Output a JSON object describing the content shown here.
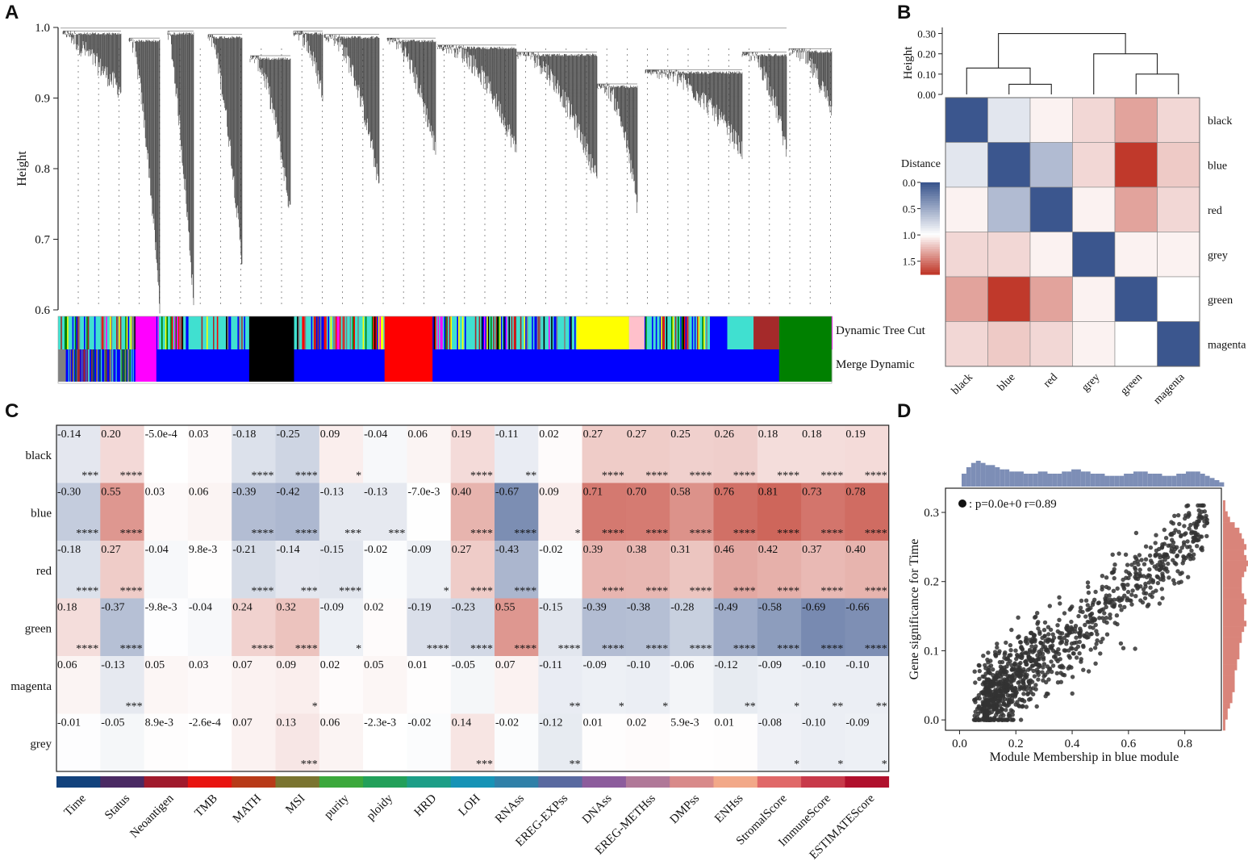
{
  "panels": {
    "A": "A",
    "B": "B",
    "C": "C",
    "D": "D"
  },
  "colors": {
    "blue_high": "#3b568e",
    "red_high": "#c0392b",
    "module_black": "#000000",
    "module_blue": "#0000ff",
    "module_red": "#ff0000",
    "module_green": "#008000",
    "module_magenta": "#ff00ff",
    "module_yellow": "#ffff00",
    "module_turquoise": "#40e0d0",
    "module_brown": "#a52a2a",
    "module_pink": "#ffc0cb",
    "scatter_point": "#333333",
    "hist_top": "#7d8eb6",
    "hist_right": "#d9847a"
  },
  "chart_data": [
    {
      "id": "A",
      "type": "dendrogram",
      "ylabel": "Height",
      "yticks": [
        "1.0",
        "0.9",
        "0.8",
        "0.7",
        "0.6"
      ],
      "ytick_values": [
        1.0,
        0.9,
        0.8,
        0.7,
        0.6
      ],
      "ylim": [
        0.6,
        1.0
      ],
      "color_rows": [
        "Dynamic Tree Cut",
        "Merge Dynamic"
      ],
      "merge_dynamic_segments": [
        {
          "module": "grey",
          "frac": 0.01
        },
        {
          "module": "blue",
          "frac": 0.09
        },
        {
          "module": "magenta",
          "frac": 0.027
        },
        {
          "module": "blue",
          "frac": 0.12
        },
        {
          "module": "black",
          "frac": 0.058
        },
        {
          "module": "blue",
          "frac": 0.117
        },
        {
          "module": "red",
          "frac": 0.062
        },
        {
          "module": "blue",
          "frac": 0.448
        },
        {
          "module": "green",
          "frac": 0.068
        }
      ],
      "dynamic_tree_cut_blocks": [
        {
          "module": "magenta",
          "start": 0.1,
          "frac": 0.027
        },
        {
          "module": "black",
          "start": 0.247,
          "frac": 0.058
        },
        {
          "module": "red",
          "start": 0.422,
          "frac": 0.062
        },
        {
          "module": "yellow",
          "start": 0.67,
          "frac": 0.068
        },
        {
          "module": "pink",
          "start": 0.738,
          "frac": 0.02
        },
        {
          "module": "blue",
          "start": 0.843,
          "frac": 0.022
        },
        {
          "module": "turquoise",
          "start": 0.865,
          "frac": 0.034
        },
        {
          "module": "brown",
          "start": 0.899,
          "frac": 0.033
        },
        {
          "module": "green",
          "start": 0.932,
          "frac": 0.068
        }
      ]
    },
    {
      "id": "B",
      "type": "heatmap",
      "modules": [
        "black",
        "blue",
        "red",
        "grey",
        "green",
        "magenta"
      ],
      "ylabel": "Height",
      "height_ticks": [
        "0.30",
        "0.20",
        "0.10",
        "0.00"
      ],
      "height_tick_values": [
        0.3,
        0.2,
        0.1,
        0.0
      ],
      "legend_title": "Distance",
      "legend_ticks": [
        "0.0",
        "0.5",
        "1.0",
        "1.5"
      ],
      "legend_tick_values": [
        0.0,
        0.5,
        1.0,
        1.5
      ],
      "distance": [
        [
          0.0,
          0.85,
          1.05,
          1.15,
          1.35,
          1.15
        ],
        [
          0.85,
          0.0,
          0.6,
          1.15,
          1.75,
          1.2
        ],
        [
          1.05,
          0.6,
          0.0,
          1.05,
          1.35,
          1.15
        ],
        [
          1.15,
          1.15,
          1.05,
          0.0,
          1.05,
          1.05
        ],
        [
          1.35,
          1.75,
          1.35,
          1.05,
          0.0,
          1.0
        ],
        [
          1.15,
          1.2,
          1.15,
          1.05,
          1.0,
          0.0
        ]
      ],
      "dendrogram_merges": [
        {
          "left": "blue",
          "right": "red",
          "height": 0.05
        },
        {
          "left": "black",
          "right": "blue+red",
          "height": 0.13
        },
        {
          "left": "green",
          "right": "magenta",
          "height": 0.1
        },
        {
          "left": "grey",
          "right": "green+magenta",
          "height": 0.2
        },
        {
          "left": "black+blue+red",
          "right": "grey+green+magenta",
          "height": 0.3
        }
      ]
    },
    {
      "id": "C",
      "type": "heatmap",
      "rows": [
        "black",
        "blue",
        "red",
        "green",
        "magenta",
        "grey"
      ],
      "cols": [
        "Time",
        "Status",
        "Neoantigen",
        "TMB",
        "MATH",
        "MSI",
        "purity",
        "ploidy",
        "HRD",
        "LOH",
        "RNAss",
        "EREG-EXPss",
        "DNAss",
        "EREG-METHss",
        "DMPss",
        "ENHss",
        "StromalScore",
        "ImmuneScore",
        "ESTIMATEScore"
      ],
      "labels": [
        [
          "-0.14",
          "0.20",
          "-5.0e-4",
          "0.03",
          "-0.18",
          "-0.25",
          "0.09",
          "-0.04",
          "0.06",
          "0.19",
          "-0.11",
          "0.02",
          "0.27",
          "0.27",
          "0.25",
          "0.26",
          "0.18",
          "0.18",
          "0.19"
        ],
        [
          "-0.30",
          "0.55",
          "0.03",
          "0.06",
          "-0.39",
          "-0.42",
          "-0.13",
          "-0.13",
          "-7.0e-3",
          "0.40",
          "-0.67",
          "0.09",
          "0.71",
          "0.70",
          "0.58",
          "0.76",
          "0.81",
          "0.73",
          "0.78"
        ],
        [
          "-0.18",
          "0.27",
          "-0.04",
          "9.8e-3",
          "-0.21",
          "-0.14",
          "-0.15",
          "-0.02",
          "-0.09",
          "0.27",
          "-0.43",
          "-0.02",
          "0.39",
          "0.38",
          "0.31",
          "0.46",
          "0.42",
          "0.37",
          "0.40"
        ],
        [
          "0.18",
          "-0.37",
          "-9.8e-3",
          "-0.04",
          "0.24",
          "0.32",
          "-0.09",
          "0.02",
          "-0.19",
          "-0.23",
          "0.55",
          "-0.15",
          "-0.39",
          "-0.38",
          "-0.28",
          "-0.49",
          "-0.58",
          "-0.69",
          "-0.66"
        ],
        [
          "0.06",
          "-0.13",
          "0.05",
          "0.03",
          "0.07",
          "0.09",
          "0.02",
          "0.05",
          "0.01",
          "-0.05",
          "0.07",
          "-0.11",
          "-0.09",
          "-0.10",
          "-0.06",
          "-0.12",
          "-0.09",
          "-0.10",
          "-0.10"
        ],
        [
          "-0.01",
          "-0.05",
          "8.9e-3",
          "-2.6e-4",
          "0.07",
          "0.13",
          "0.06",
          "-2.3e-3",
          "-0.02",
          "0.14",
          "-0.02",
          "-0.12",
          "0.01",
          "0.02",
          "5.9e-3",
          "0.01",
          "-0.08",
          "-0.10",
          "-0.09"
        ]
      ],
      "values": [
        [
          -0.14,
          0.2,
          -0.0005,
          0.03,
          -0.18,
          -0.25,
          0.09,
          -0.04,
          0.06,
          0.19,
          -0.11,
          0.02,
          0.27,
          0.27,
          0.25,
          0.26,
          0.18,
          0.18,
          0.19
        ],
        [
          -0.3,
          0.55,
          0.03,
          0.06,
          -0.39,
          -0.42,
          -0.13,
          -0.13,
          -0.007,
          0.4,
          -0.67,
          0.09,
          0.71,
          0.7,
          0.58,
          0.76,
          0.81,
          0.73,
          0.78
        ],
        [
          -0.18,
          0.27,
          -0.04,
          0.0098,
          -0.21,
          -0.14,
          -0.15,
          -0.02,
          -0.09,
          0.27,
          -0.43,
          -0.02,
          0.39,
          0.38,
          0.31,
          0.46,
          0.42,
          0.37,
          0.4
        ],
        [
          0.18,
          -0.37,
          -0.0098,
          -0.04,
          0.24,
          0.32,
          -0.09,
          0.02,
          -0.19,
          -0.23,
          0.55,
          -0.15,
          -0.39,
          -0.38,
          -0.28,
          -0.49,
          -0.58,
          -0.69,
          -0.66
        ],
        [
          0.06,
          -0.13,
          0.05,
          0.03,
          0.07,
          0.09,
          0.02,
          0.05,
          0.01,
          -0.05,
          0.07,
          -0.11,
          -0.09,
          -0.1,
          -0.06,
          -0.12,
          -0.09,
          -0.1,
          -0.1
        ],
        [
          -0.01,
          -0.05,
          0.0089,
          -0.00026,
          0.07,
          0.13,
          0.06,
          -0.0023,
          -0.02,
          0.14,
          -0.02,
          -0.12,
          0.01,
          0.02,
          0.0059,
          0.01,
          -0.08,
          -0.1,
          -0.09
        ]
      ],
      "stars": [
        [
          "***",
          "****",
          "",
          "",
          "****",
          "****",
          "*",
          "",
          "",
          "****",
          "**",
          "",
          "****",
          "****",
          "****",
          "****",
          "****",
          "****",
          "****"
        ],
        [
          "****",
          "****",
          "",
          "",
          "****",
          "****",
          "***",
          "***",
          "",
          "****",
          "****",
          "*",
          "****",
          "****",
          "****",
          "****",
          "****",
          "****",
          "****"
        ],
        [
          "****",
          "****",
          "",
          "",
          "****",
          "***",
          "****",
          "",
          "*",
          "****",
          "****",
          "",
          "****",
          "****",
          "****",
          "****",
          "****",
          "****",
          "****"
        ],
        [
          "****",
          "****",
          "",
          "",
          "****",
          "****",
          "*",
          "",
          "****",
          "****",
          "****",
          "****",
          "****",
          "****",
          "****",
          "****",
          "****",
          "****",
          "****"
        ],
        [
          "",
          "***",
          "",
          "",
          "",
          "*",
          "",
          "",
          "",
          "",
          "",
          "**",
          "*",
          "*",
          "",
          "**",
          "*",
          "**",
          "**"
        ],
        [
          "",
          "",
          "",
          "",
          "",
          "***",
          "",
          "",
          "",
          "***",
          "",
          "**",
          "",
          "",
          "",
          "",
          "*",
          "*",
          "*"
        ]
      ],
      "col_colors": [
        "#12427c",
        "#4a2a63",
        "#a01a2c",
        "#e81410",
        "#b83a18",
        "#7a7430",
        "#3ca83c",
        "#23a05a",
        "#1d9e87",
        "#1693b6",
        "#3080a8",
        "#5a6aa0",
        "#8c5c9c",
        "#b07898",
        "#d88a8a",
        "#f2a888",
        "#e06868",
        "#c83a4a",
        "#b0102c"
      ]
    },
    {
      "id": "D",
      "type": "scatter",
      "xlabel": "Module Membership in blue module",
      "ylabel": "Gene significance for Time",
      "xticks": [
        "0.0",
        "0.2",
        "0.4",
        "0.6",
        "0.8"
      ],
      "xtick_values": [
        0.0,
        0.2,
        0.4,
        0.6,
        0.8
      ],
      "yticks": [
        "0.0",
        "0.1",
        "0.2",
        "0.3"
      ],
      "ytick_values": [
        0.0,
        0.1,
        0.2,
        0.3
      ],
      "xlim": [
        -0.05,
        0.93
      ],
      "ylim": [
        -0.015,
        0.335
      ],
      "legend": "p=0.0e+0 r=0.89",
      "correlation_r": 0.89,
      "n_points": 1100,
      "top_hist": [
        6,
        9,
        11,
        12,
        11,
        10,
        10,
        9,
        8,
        8,
        7,
        7,
        7,
        6,
        6,
        6,
        7,
        7,
        6,
        6,
        6,
        7,
        7,
        8,
        8,
        7,
        7,
        6,
        6,
        6,
        5,
        5,
        5,
        5,
        6,
        6,
        7,
        7,
        7,
        6,
        6,
        6,
        5,
        5,
        5,
        6,
        6,
        7,
        7,
        7,
        6,
        5,
        4,
        3,
        2
      ],
      "right_hist": [
        1,
        1,
        2,
        3,
        5,
        7,
        8,
        9,
        10,
        9,
        10,
        11,
        10,
        9,
        8,
        8,
        8,
        9,
        10,
        9,
        9,
        9,
        10,
        9,
        8,
        8,
        7,
        7,
        7,
        6,
        6,
        5,
        5,
        5,
        5,
        4,
        4,
        3,
        2,
        2,
        1,
        1
      ]
    }
  ]
}
